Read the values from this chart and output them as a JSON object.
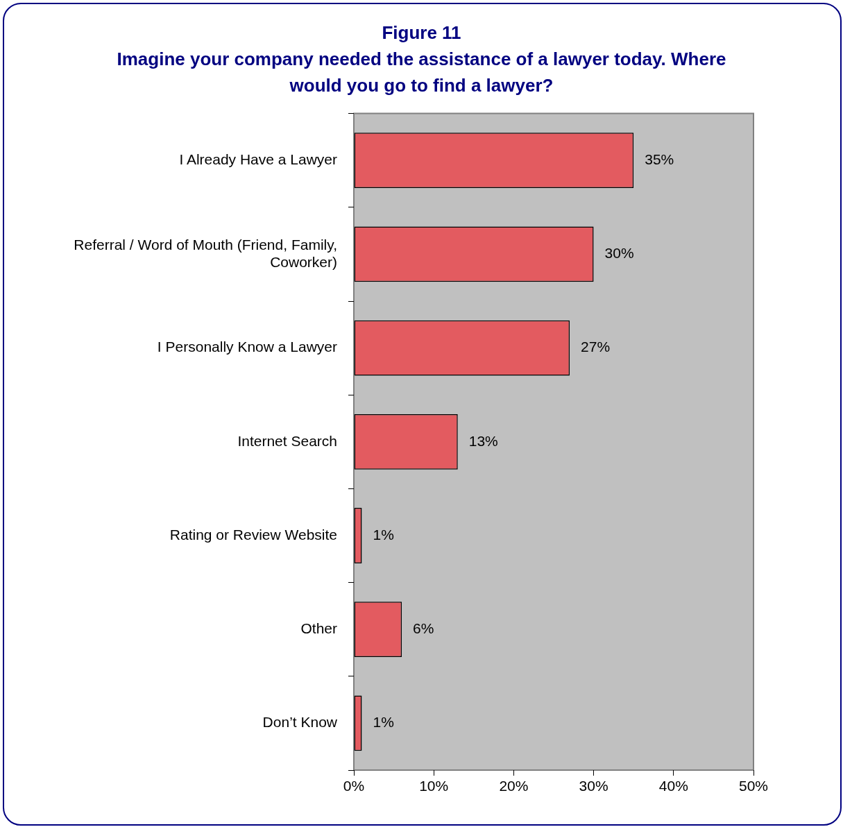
{
  "chart_data": {
    "type": "bar",
    "orientation": "horizontal",
    "title": "Figure 11",
    "subtitle": "Imagine your company needed the assistance of a lawyer today. Where would you go to find a lawyer?",
    "categories": [
      "I Already Have a Lawyer",
      "Referral / Word of Mouth (Friend, Family, Coworker)",
      "I Personally Know a Lawyer",
      "Internet Search",
      "Rating or Review Website",
      "Other",
      "Don’t Know"
    ],
    "values": [
      35,
      30,
      27,
      13,
      1,
      6,
      1
    ],
    "value_labels": [
      "35%",
      "30%",
      "27%",
      "13%",
      "1%",
      "6%",
      "1%"
    ],
    "color": "#e35b60",
    "xlim": [
      0,
      50
    ],
    "xticks": [
      {
        "value": 0,
        "label": "0%"
      },
      {
        "value": 10,
        "label": "10%"
      },
      {
        "value": 20,
        "label": "20%"
      },
      {
        "value": 30,
        "label": "30%"
      },
      {
        "value": 40,
        "label": "40%"
      },
      {
        "value": 50,
        "label": "50%"
      }
    ],
    "grid": false,
    "legend": false
  }
}
